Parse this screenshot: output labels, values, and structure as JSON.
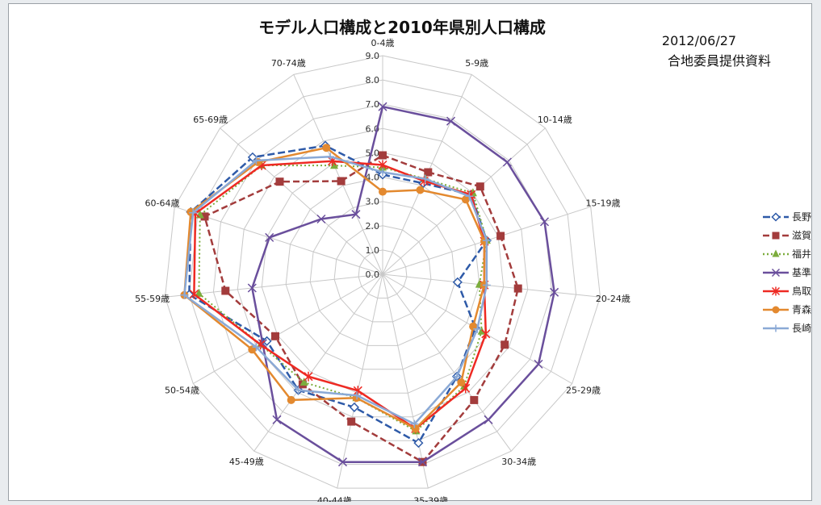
{
  "chart_data": {
    "type": "radar",
    "title": "モデル人口構成と2010年県別人口構成",
    "date": "2012/06/27",
    "source": "合地委員提供資料",
    "categories": [
      "0-4歳",
      "5-9歳",
      "10-14歳",
      "15-19歳",
      "20-24歳",
      "25-29歳",
      "30-34歳",
      "35-39歳",
      "40-44歳",
      "45-49歳",
      "50-54歳",
      "55-59歳",
      "60-64歳",
      "65-69歳",
      "70-74歳"
    ],
    "rlim": [
      0,
      9
    ],
    "rticks": [
      "0.0",
      "1.0",
      "2.0",
      "3.0",
      "4.0",
      "5.0",
      "6.0",
      "7.0",
      "8.0",
      "9.0"
    ],
    "grid": true,
    "legend_position": "right",
    "series": [
      {
        "name": "長野",
        "color": "#2e5aa8",
        "dash": "9 4",
        "marker": "diamond-open",
        "values": [
          4.1,
          4.1,
          4.9,
          4.5,
          3.1,
          4.4,
          5.2,
          7.1,
          5.6,
          5.9,
          5.5,
          8.0,
          8.3,
          7.2,
          5.8
        ]
      },
      {
        "name": "滋賀",
        "color": "#a33c3c",
        "dash": "8 4",
        "marker": "square",
        "values": [
          4.9,
          4.6,
          5.4,
          5.1,
          5.6,
          5.8,
          6.4,
          7.9,
          6.2,
          5.6,
          5.1,
          6.5,
          7.7,
          5.7,
          4.2
        ]
      },
      {
        "name": "福井",
        "color": "#7cac3c",
        "dash": "2 3",
        "marker": "triangle",
        "values": [
          4.4,
          4.3,
          5.0,
          4.5,
          4.0,
          4.7,
          5.7,
          6.6,
          5.2,
          5.5,
          5.8,
          7.6,
          7.9,
          6.7,
          4.9
        ]
      },
      {
        "name": "基準",
        "color": "#6a4f9c",
        "dash": "",
        "marker": "x",
        "values": [
          6.9,
          6.9,
          6.9,
          7.0,
          7.1,
          7.4,
          7.4,
          7.9,
          7.9,
          7.4,
          5.7,
          5.4,
          4.9,
          3.4,
          2.7
        ]
      },
      {
        "name": "鳥取",
        "color": "#ee2a23",
        "dash": "",
        "marker": "asterisk",
        "values": [
          4.5,
          4.2,
          4.9,
          4.4,
          4.2,
          4.9,
          5.8,
          6.5,
          4.9,
          5.2,
          5.8,
          7.8,
          8.1,
          6.7,
          5.1
        ]
      },
      {
        "name": "青森",
        "color": "#e3892f",
        "dash": "",
        "marker": "circle",
        "values": [
          3.4,
          3.8,
          4.6,
          4.4,
          4.2,
          4.3,
          5.5,
          6.5,
          5.2,
          6.4,
          6.2,
          8.2,
          8.3,
          6.9,
          5.7
        ]
      },
      {
        "name": "長崎",
        "color": "#8aa9d6",
        "dash": "",
        "marker": "plus",
        "values": [
          4.2,
          4.3,
          4.8,
          4.5,
          4.3,
          4.5,
          5.2,
          6.3,
          5.1,
          5.9,
          6.0,
          8.2,
          8.2,
          7.0,
          5.3
        ]
      }
    ]
  }
}
